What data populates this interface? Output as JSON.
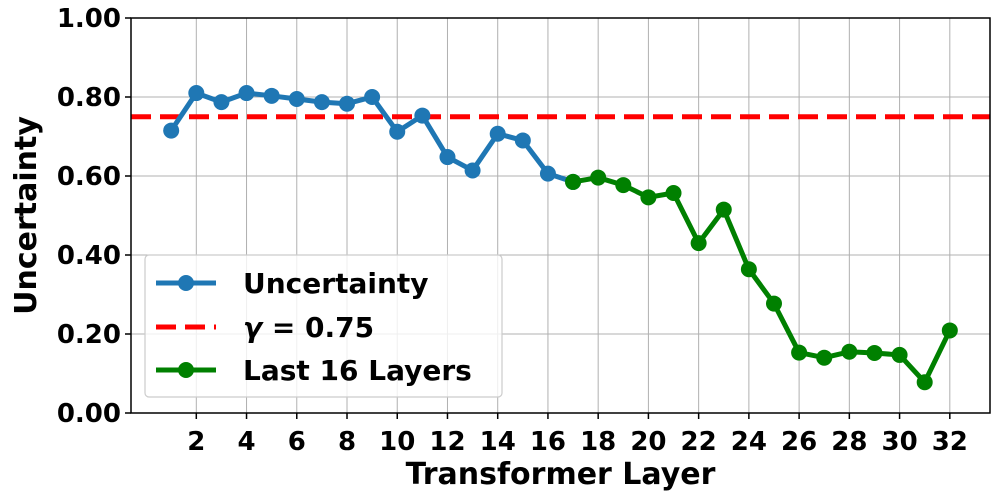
{
  "chart_data": {
    "type": "line",
    "xlabel": "Transformer Layer",
    "ylabel": "Uncertainty",
    "xlim": [
      -0.6,
      33.6
    ],
    "ylim": [
      0.0,
      1.0
    ],
    "xticks": [
      2,
      4,
      6,
      8,
      10,
      12,
      14,
      16,
      18,
      20,
      22,
      24,
      26,
      28,
      30,
      32
    ],
    "xtick_labels": [
      "2",
      "4",
      "6",
      "8",
      "10",
      "12",
      "14",
      "16",
      "18",
      "20",
      "22",
      "24",
      "26",
      "28",
      "30",
      "32"
    ],
    "yticks": [
      0.0,
      0.2,
      0.4,
      0.6,
      0.8,
      1.0
    ],
    "ytick_labels": [
      "0.00",
      "0.20",
      "0.40",
      "0.60",
      "0.80",
      "1.00"
    ],
    "grid": true,
    "legend_position": "lower-left",
    "series": [
      {
        "name": "Uncertainty",
        "color": "#1f77b4",
        "x": [
          1,
          2,
          3,
          4,
          5,
          6,
          7,
          8,
          9,
          10,
          11,
          12,
          13,
          14,
          15,
          16,
          17
        ],
        "y": [
          0.715,
          0.81,
          0.787,
          0.81,
          0.803,
          0.795,
          0.787,
          0.783,
          0.8,
          0.712,
          0.753,
          0.648,
          0.614,
          0.707,
          0.69,
          0.606,
          0.585
        ]
      },
      {
        "name": "Last 16 Layers",
        "color": "#008000",
        "x": [
          17,
          18,
          19,
          20,
          21,
          22,
          23,
          24,
          25,
          26,
          27,
          28,
          29,
          30,
          31,
          32
        ],
        "y": [
          0.585,
          0.596,
          0.577,
          0.546,
          0.557,
          0.43,
          0.515,
          0.364,
          0.277,
          0.153,
          0.14,
          0.155,
          0.152,
          0.147,
          0.078,
          0.209
        ]
      }
    ],
    "threshold": {
      "name": "γ = 0.75",
      "name_symbol": "γ",
      "name_rest": " = 0.75",
      "value": 0.75,
      "color": "#ff0000",
      "style": "dashed"
    }
  }
}
